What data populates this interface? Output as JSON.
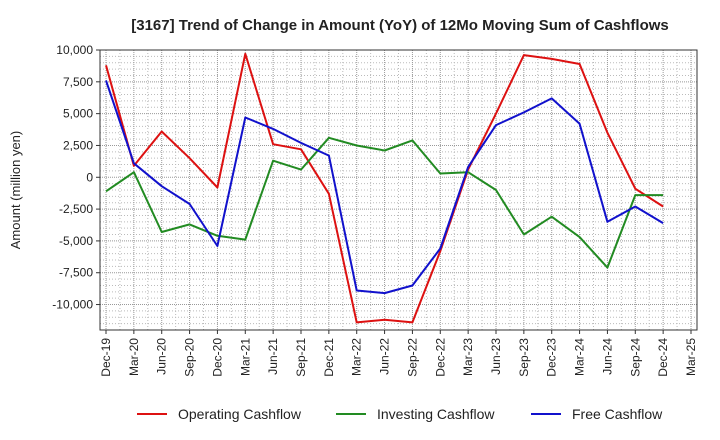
{
  "chart_data": {
    "type": "line",
    "title": "[3167]  Trend of Change in Amount (YoY) of 12Mo Moving Sum of Cashflows",
    "xlabel": "",
    "ylabel": "Amount (million yen)",
    "ylim": [
      -12000,
      10000
    ],
    "grid": true,
    "legend_position": "bottom",
    "categories": [
      "Dec-19",
      "Mar-20",
      "Jun-20",
      "Sep-20",
      "Dec-20",
      "Mar-21",
      "Jun-21",
      "Sep-21",
      "Dec-21",
      "Mar-22",
      "Jun-22",
      "Sep-22",
      "Dec-22",
      "Mar-23",
      "Jun-23",
      "Sep-23",
      "Dec-23",
      "Mar-24",
      "Jun-24",
      "Sep-24",
      "Dec-24",
      "Mar-25"
    ],
    "y_ticks": [
      {
        "value": 10000,
        "label": "10,000"
      },
      {
        "value": 7500,
        "label": "7,500"
      },
      {
        "value": 5000,
        "label": "5,000"
      },
      {
        "value": 2500,
        "label": "2,500"
      },
      {
        "value": 0,
        "label": "0"
      },
      {
        "value": -2500,
        "label": "-2,500"
      },
      {
        "value": -5000,
        "label": "-5,000"
      },
      {
        "value": -7500,
        "label": "-7,500"
      },
      {
        "value": -10000,
        "label": "-10,000"
      }
    ],
    "series": [
      {
        "name": "Operating Cashflow",
        "color": "#dd1111",
        "values": [
          8800,
          900,
          3600,
          1500,
          -800,
          9700,
          2600,
          2200,
          -1300,
          -11400,
          -11200,
          -11400,
          -5800,
          600,
          5000,
          9600,
          9300,
          8900,
          3500,
          -900,
          -2300,
          null
        ]
      },
      {
        "name": "Investing Cashflow",
        "color": "#228b22",
        "values": [
          -1100,
          400,
          -4300,
          -3700,
          -4600,
          -4900,
          1300,
          600,
          3100,
          2500,
          2100,
          2900,
          300,
          400,
          -1000,
          -4500,
          -3100,
          -4700,
          -7100,
          -1400,
          -1400,
          null
        ]
      },
      {
        "name": "Free Cashflow",
        "color": "#1111cc",
        "values": [
          7600,
          1100,
          -700,
          -2100,
          -5400,
          4700,
          3800,
          2700,
          1700,
          -8900,
          -9100,
          -8500,
          -5600,
          800,
          4100,
          5100,
          6200,
          4200,
          -3500,
          -2300,
          -3600,
          null
        ]
      }
    ]
  }
}
